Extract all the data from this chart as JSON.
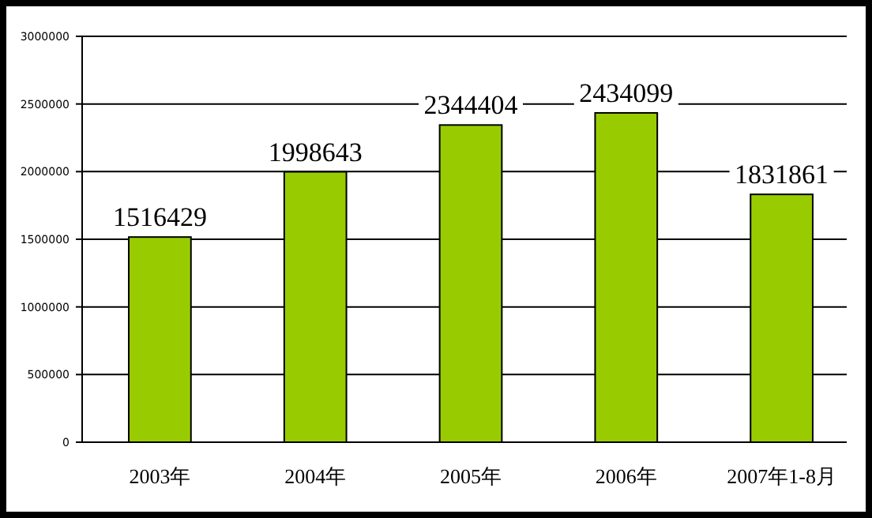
{
  "chart_data": {
    "type": "bar",
    "categories": [
      "2003年",
      "2004年",
      "2005年",
      "2006年",
      "2007年1-8月"
    ],
    "values": [
      1516429,
      1998643,
      2344404,
      2434099,
      1831861
    ],
    "color": "#99cc00",
    "data_labels": true,
    "ylim": [
      0,
      3000000
    ],
    "yticks": [
      0,
      500000,
      1000000,
      1500000,
      2000000,
      2500000,
      3000000
    ],
    "grid": "y"
  }
}
